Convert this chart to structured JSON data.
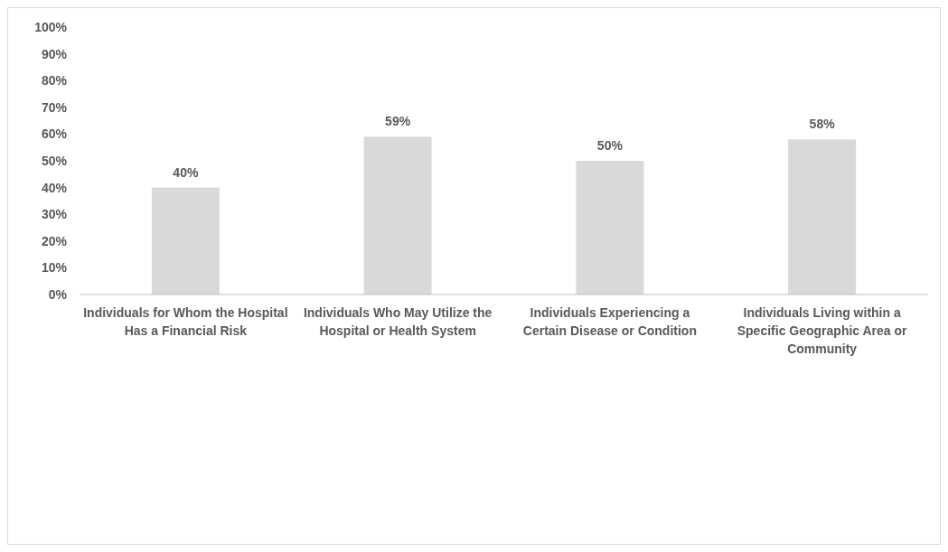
{
  "chart_data": {
    "type": "bar",
    "categories": [
      "Individuals for Whom the Hospital Has a Financial Risk",
      "Individuals Who May Utilize the Hospital or Health System",
      "Individuals Experiencing a Certain Disease or Condition",
      "Individuals Living within a Specific Geographic Area or Community"
    ],
    "values": [
      40,
      59,
      50,
      58
    ],
    "value_labels": [
      "40%",
      "59%",
      "50%",
      "58%"
    ],
    "color": "#d9d9d9",
    "ylim": [
      0,
      100
    ],
    "yticks": [
      {
        "value": 0,
        "label": "0%"
      },
      {
        "value": 10,
        "label": "10%"
      },
      {
        "value": 20,
        "label": "20%"
      },
      {
        "value": 30,
        "label": "30%"
      },
      {
        "value": 40,
        "label": "40%"
      },
      {
        "value": 50,
        "label": "50%"
      },
      {
        "value": 60,
        "label": "60%"
      },
      {
        "value": 70,
        "label": "70%"
      },
      {
        "value": 80,
        "label": "80%"
      },
      {
        "value": 90,
        "label": "90%"
      },
      {
        "value": 100,
        "label": "100%"
      }
    ],
    "grid": false
  }
}
